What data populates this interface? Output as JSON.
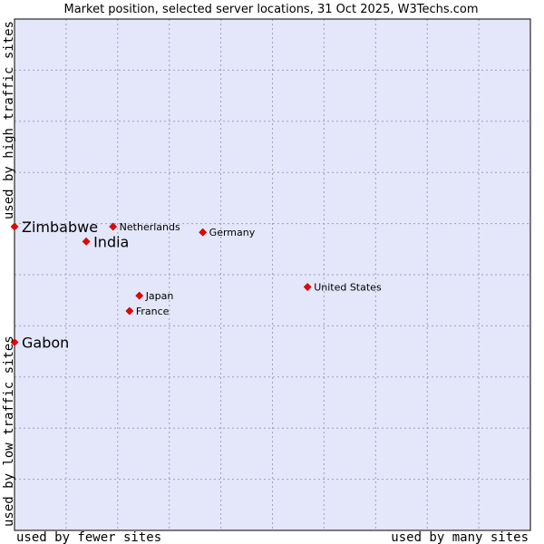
{
  "chart_data": {
    "type": "scatter",
    "title": "Market position, selected server locations, 31 Oct 2025, W3Techs.com",
    "xlabel_left": "used by fewer sites",
    "xlabel_right": "used by many sites",
    "ylabel_bottom": "used by low traffic sites",
    "ylabel_top": "used by high traffic sites",
    "xlim": [
      0,
      100
    ],
    "ylim": [
      0,
      100
    ],
    "grid": true,
    "background_color": "#e4e6fa",
    "point_color": "#ee0000",
    "points": [
      {
        "label": "Zimbabwe",
        "x": 0.0,
        "y": 59.4,
        "emphasis": true
      },
      {
        "label": "Netherlands",
        "x": 19.1,
        "y": 59.4,
        "emphasis": false
      },
      {
        "label": "India",
        "x": 13.9,
        "y": 56.5,
        "emphasis": true
      },
      {
        "label": "Germany",
        "x": 36.5,
        "y": 58.3,
        "emphasis": false
      },
      {
        "label": "United States",
        "x": 56.8,
        "y": 47.6,
        "emphasis": false
      },
      {
        "label": "Japan",
        "x": 24.2,
        "y": 45.9,
        "emphasis": false
      },
      {
        "label": "France",
        "x": 22.3,
        "y": 42.9,
        "emphasis": false
      },
      {
        "label": "Gabon",
        "x": 0.0,
        "y": 36.8,
        "emphasis": true
      }
    ]
  }
}
